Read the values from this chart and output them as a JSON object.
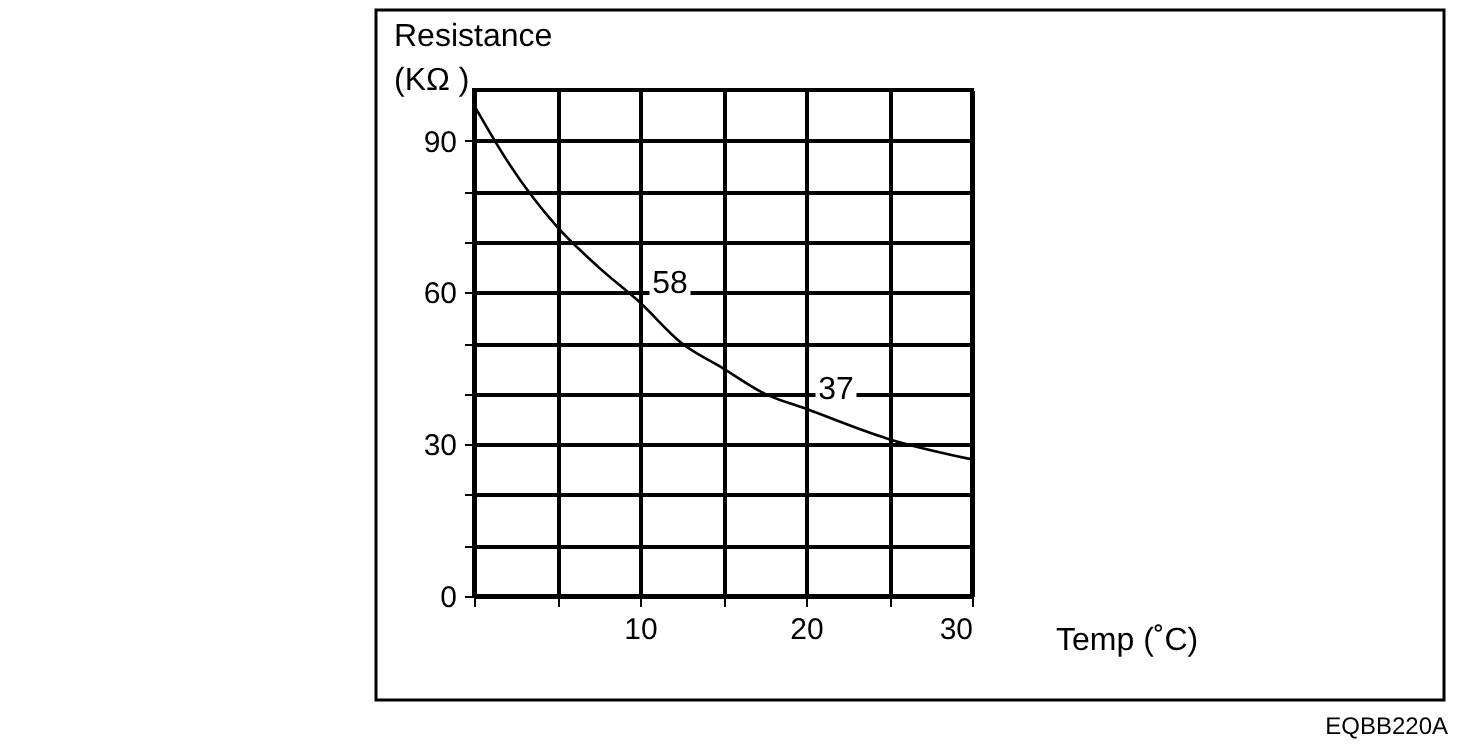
{
  "chart_data": {
    "type": "line",
    "ylabel": "Resistance\n(KΩ )",
    "xlabel": "Temp (˚C)",
    "x": [
      0,
      2,
      5,
      7.5,
      10,
      12.5,
      15,
      17.5,
      20,
      25,
      30
    ],
    "series": [
      {
        "color": "#000000",
        "values": [
          97,
          86,
          73,
          65,
          58,
          50,
          45,
          40,
          37,
          31,
          27
        ]
      }
    ],
    "xlim": [
      0,
      30
    ],
    "ylim": [
      0,
      100
    ],
    "xticks": [
      {
        "value": 0,
        "label": null
      },
      {
        "value": 5,
        "label": null
      },
      10,
      {
        "value": 15,
        "label": null
      },
      20,
      {
        "value": 25,
        "label": null
      },
      30
    ],
    "yticks": [
      0,
      {
        "value": 10,
        "label": null
      },
      {
        "value": 20,
        "label": null
      },
      30,
      {
        "value": 40,
        "label": null
      },
      {
        "value": 50,
        "label": null
      },
      60,
      {
        "value": 70,
        "label": null
      },
      {
        "value": 80,
        "label": null
      },
      90
    ],
    "grid": true,
    "marker": "none",
    "line_style": "solid",
    "annotations": [
      {
        "text": "58",
        "x": 10,
        "y": 58
      },
      {
        "text": "37",
        "x": 20,
        "y": 37
      },
      "EQBB220A"
    ]
  }
}
